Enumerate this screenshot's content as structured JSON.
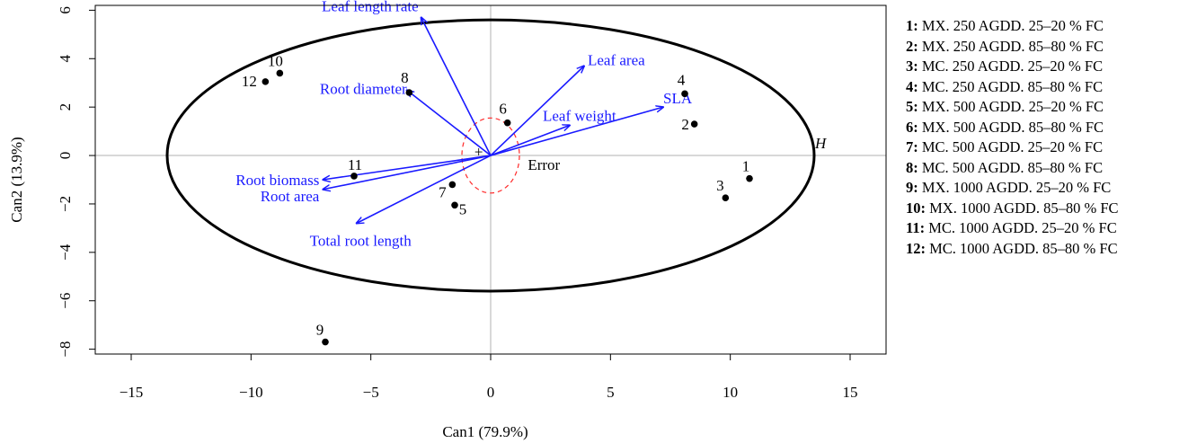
{
  "chart_data": {
    "type": "scatter",
    "xlabel": "Can1 (79.9%)",
    "ylabel": "Can2 (13.9%)",
    "xlim": [
      -16.5,
      16.5
    ],
    "ylim": [
      -8.2,
      6.2
    ],
    "xticks": [
      -15,
      -10,
      -5,
      0,
      5,
      10,
      15
    ],
    "yticks": [
      -8,
      -6,
      -4,
      -2,
      0,
      2,
      4,
      6
    ],
    "grid": false,
    "legend_position": "right",
    "points": [
      {
        "label": "1",
        "x": 10.8,
        "y": -0.95
      },
      {
        "label": "2",
        "x": 8.5,
        "y": 1.3
      },
      {
        "label": "3",
        "x": 9.8,
        "y": -1.75
      },
      {
        "label": "4",
        "x": 8.1,
        "y": 2.55
      },
      {
        "label": "5",
        "x": -1.5,
        "y": -2.05
      },
      {
        "label": "6",
        "x": 0.7,
        "y": 1.35
      },
      {
        "label": "7",
        "x": -1.6,
        "y": -1.2
      },
      {
        "label": "8",
        "x": -3.4,
        "y": 2.6
      },
      {
        "label": "9",
        "x": -6.9,
        "y": -7.7
      },
      {
        "label": "10",
        "x": -8.8,
        "y": 3.4
      },
      {
        "label": "11",
        "x": -5.7,
        "y": -0.85
      },
      {
        "label": "12",
        "x": -9.4,
        "y": 3.05
      }
    ],
    "vectors": [
      {
        "label": "Leaf length rate",
        "x": -2.9,
        "y": 5.7
      },
      {
        "label": "Leaf area",
        "x": 3.9,
        "y": 3.7
      },
      {
        "label": "SLA",
        "x": 7.2,
        "y": 2.0
      },
      {
        "label": "Leaf weight",
        "x": 3.3,
        "y": 1.25
      },
      {
        "label": "Root diameter",
        "x": -3.5,
        "y": 2.7
      },
      {
        "label": "Root biomass",
        "x": -7.0,
        "y": -1.0
      },
      {
        "label": "Root area",
        "x": -7.0,
        "y": -1.4
      },
      {
        "label": "Total root length",
        "x": -5.6,
        "y": -2.8
      }
    ],
    "ellipse_H": {
      "label": "H",
      "rx": 13.5,
      "ry": 5.6
    },
    "ellipse_error": {
      "label": "Error",
      "rx": 1.2,
      "ry": 1.55
    },
    "colors": {
      "points": "#000000",
      "vectors": "#1a1aff",
      "error": "#ff2a2a",
      "axes_ref": "#b0b0b0"
    },
    "legend": [
      {
        "key": "1:",
        "text": "MX. 250 AGDD. 25–20 % FC"
      },
      {
        "key": "2:",
        "text": "MX. 250 AGDD. 85–80 % FC"
      },
      {
        "key": "3:",
        "text": "MC. 250 AGDD. 25–20 % FC"
      },
      {
        "key": "4:",
        "text": "MC. 250 AGDD. 85–80 % FC"
      },
      {
        "key": "5:",
        "text": "MX. 500 AGDD. 25–20 % FC"
      },
      {
        "key": "6:",
        "text": "MX. 500 AGDD. 85–80 % FC"
      },
      {
        "key": "7:",
        "text": "MC. 500 AGDD. 25–20 % FC"
      },
      {
        "key": "8:",
        "text": "MC. 500 AGDD. 85–80 % FC"
      },
      {
        "key": "9:",
        "text": "MX. 1000 AGDD. 25–20 % FC"
      },
      {
        "key": "10:",
        "text": "MX. 1000 AGDD. 85–80 % FC"
      },
      {
        "key": "11:",
        "text": "MC. 1000 AGDD. 25–20 % FC"
      },
      {
        "key": "12:",
        "text": "MC. 1000 AGDD. 85–80 % FC"
      }
    ]
  }
}
